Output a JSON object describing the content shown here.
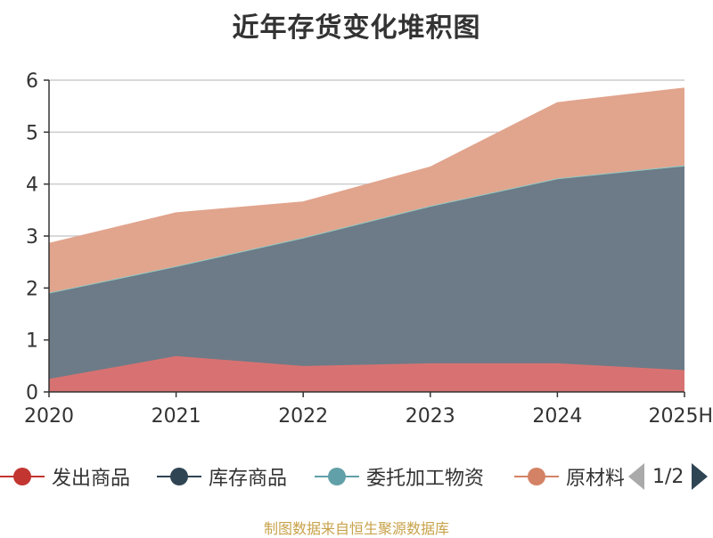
{
  "chart_data": {
    "type": "area",
    "title": "近年存货变化堆积图",
    "stacked": true,
    "categories": [
      "2020",
      "2021",
      "2022",
      "2023",
      "2024",
      "2025H"
    ],
    "ylim": [
      0,
      6
    ],
    "y_ticks": [
      "0",
      "1",
      "2",
      "3",
      "4",
      "5",
      "6"
    ],
    "grid": true,
    "legend_position": "bottom",
    "series": [
      {
        "name": "发出商品",
        "color": "#d87272",
        "values": [
          0.25,
          0.69,
          0.5,
          0.55,
          0.55,
          0.42
        ]
      },
      {
        "name": "库存商品",
        "color": "#6c7b87",
        "values": [
          1.66,
          1.73,
          2.47,
          3.03,
          3.56,
          3.92
        ]
      },
      {
        "name": "委托加工物资",
        "color": "#92c9c5",
        "values": [
          0.0,
          0.0,
          0.0,
          0.0,
          0.0,
          0.02
        ]
      },
      {
        "name": "原材料",
        "color": "#e1a48d",
        "values": [
          0.94,
          1.02,
          0.68,
          0.74,
          1.45,
          1.48
        ]
      }
    ]
  },
  "legend": {
    "items": [
      {
        "label": "发出商品",
        "color": "#c23531"
      },
      {
        "label": "库存商品",
        "color": "#2f4554"
      },
      {
        "label": "委托加工物资",
        "color": "#61a0a8"
      },
      {
        "label": "原材料",
        "color": "#d48265"
      }
    ],
    "page_text": "1/2"
  },
  "footer": {
    "source": "制图数据来自恒生聚源数据库"
  }
}
